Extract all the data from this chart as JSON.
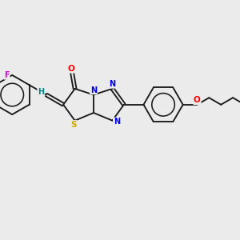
{
  "bg_color": "#ebebeb",
  "bond_color": "#1a1a1a",
  "atom_colors": {
    "O": "#ff0000",
    "N": "#0000ee",
    "S": "#ccaa00",
    "F": "#dd00dd",
    "H": "#008888",
    "C": "#1a1a1a"
  },
  "figsize": [
    3.0,
    3.0
  ],
  "dpi": 100,
  "bond_lw": 1.35,
  "xlim": [
    0,
    10
  ],
  "ylim": [
    0,
    10
  ]
}
